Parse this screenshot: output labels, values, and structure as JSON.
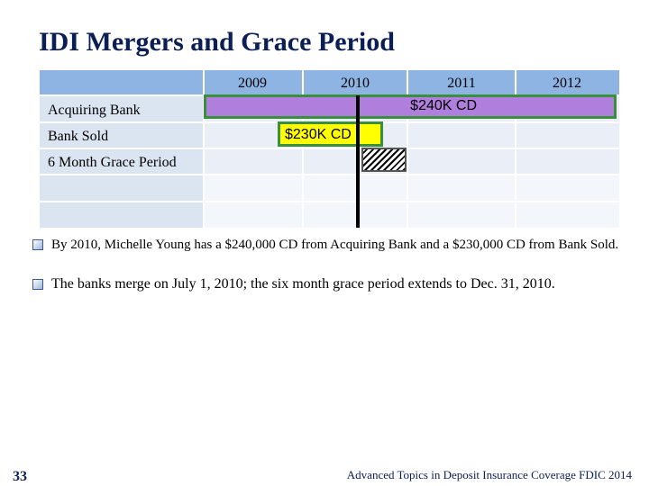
{
  "slide": {
    "title": "IDI Mergers and Grace Period",
    "page_number": "33",
    "footer": "Advanced Topics in Deposit Insurance Coverage FDIC 2014"
  },
  "timeline": {
    "years": [
      "2009",
      "2010",
      "2011",
      "2012"
    ],
    "rows": [
      "Acquiring Bank",
      "Bank Sold",
      "6 Month Grace Period"
    ],
    "bars": {
      "acquiring_cd": "$240K CD",
      "sold_cd": "$230K CD"
    },
    "colors": {
      "header": "#8eb4e3",
      "acquiring_bar": "#b07fde",
      "sold_bar": "#ffff00",
      "bar_border": "#3a8f3c"
    }
  },
  "bullets": [
    "By 2010, Michelle Young has a $240,000 CD from Acquiring Bank and a $230,000 CD from Bank Sold.",
    "The banks merge on July 1, 2010; the six month grace period extends to Dec. 31, 2010."
  ]
}
